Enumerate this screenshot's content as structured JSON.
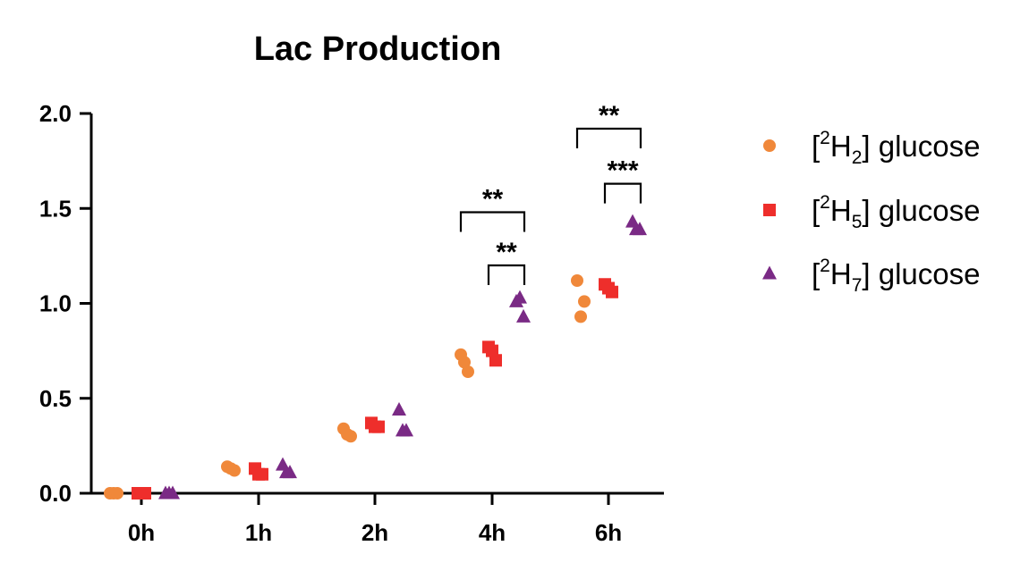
{
  "chart_data": {
    "type": "scatter",
    "title": "Lac Production",
    "xlabel": "",
    "ylabel": "",
    "categories": [
      "0h",
      "1h",
      "2h",
      "4h",
      "6h"
    ],
    "ylim": [
      0,
      2.0
    ],
    "yticks": [
      0.0,
      0.5,
      1.0,
      1.5,
      2.0
    ],
    "ytick_labels": [
      "0.0",
      "0.5",
      "1.0",
      "1.5",
      "2.0"
    ],
    "grid": false,
    "legend_position": "right",
    "series": [
      {
        "name": "[2H2] glucose",
        "label_base": "[",
        "label_sup": "2",
        "label_main": "H",
        "label_sub": "2",
        "label_tail": "] glucose",
        "color": "#F0883A",
        "marker": "circle",
        "values": [
          [
            0.0,
            0.0,
            0.0
          ],
          [
            0.14,
            0.12,
            0.13
          ],
          [
            0.34,
            0.3,
            0.31
          ],
          [
            0.73,
            0.64,
            0.69
          ],
          [
            1.12,
            1.01,
            0.93
          ]
        ]
      },
      {
        "name": "[2H5] glucose",
        "label_base": "[",
        "label_sup": "2",
        "label_main": "H",
        "label_sub": "5",
        "label_tail": "] glucose",
        "color": "#EE2E2B",
        "marker": "square",
        "values": [
          [
            0.0,
            0.0,
            0.0
          ],
          [
            0.13,
            0.1,
            0.1
          ],
          [
            0.37,
            0.35,
            0.35
          ],
          [
            0.77,
            0.7,
            0.75
          ],
          [
            1.1,
            1.06,
            1.08
          ]
        ]
      },
      {
        "name": "[2H7] glucose",
        "label_base": "[",
        "label_sup": "2",
        "label_main": "H",
        "label_sub": "7",
        "label_tail": "] glucose",
        "color": "#7A2A85",
        "marker": "triangle",
        "values": [
          [
            0.0,
            0.0,
            0.0
          ],
          [
            0.15,
            0.11,
            0.11
          ],
          [
            0.44,
            0.33,
            0.33
          ],
          [
            1.01,
            0.93,
            1.03
          ],
          [
            1.43,
            1.39,
            1.39
          ]
        ]
      }
    ],
    "significance": [
      {
        "category": "4h",
        "from_series": 0,
        "to_series": 2,
        "label": "**",
        "y": 1.48
      },
      {
        "category": "4h",
        "from_series": 1,
        "to_series": 2,
        "label": "**",
        "y": 1.2
      },
      {
        "category": "6h",
        "from_series": 0,
        "to_series": 2,
        "label": "**",
        "y": 1.92
      },
      {
        "category": "6h",
        "from_series": 1,
        "to_series": 2,
        "label": "***",
        "y": 1.63
      }
    ]
  }
}
